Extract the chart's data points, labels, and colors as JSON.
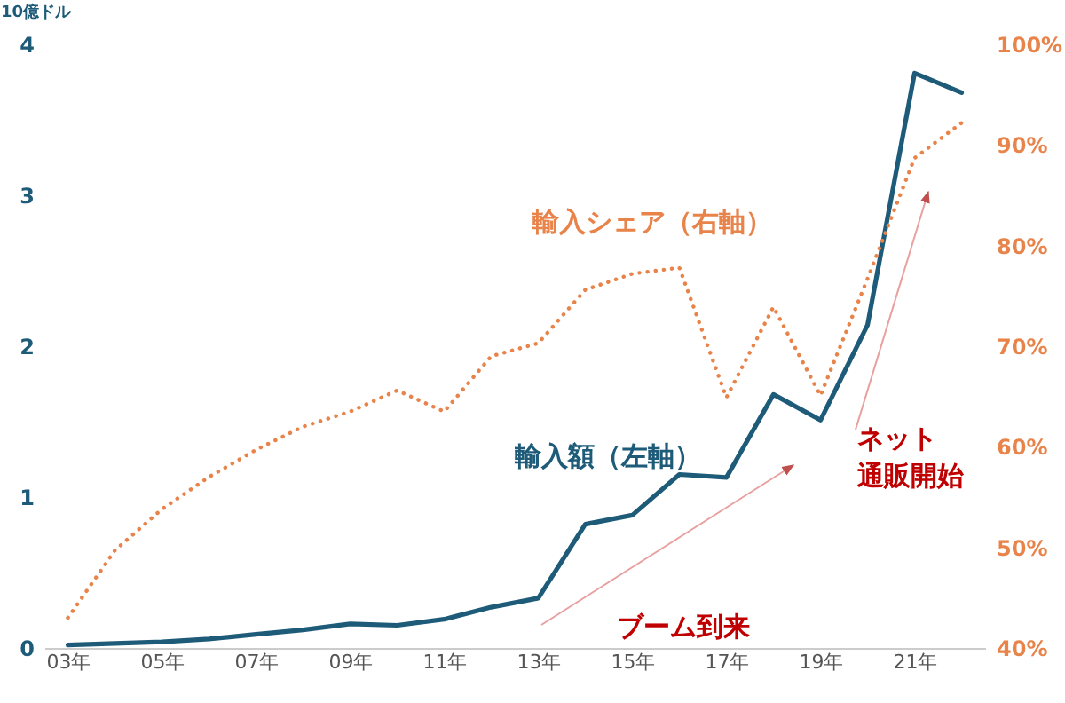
{
  "chart_data": {
    "type": "line",
    "ylabel": "10億ドル",
    "categories": [
      "03年",
      null,
      "05年",
      null,
      "07年",
      null,
      "09年",
      null,
      "11年",
      null,
      "13年",
      null,
      "15年",
      null,
      "17年",
      null,
      "19年",
      null,
      "21年",
      null
    ],
    "series": [
      {
        "name": "輸入額（左軸）",
        "color": "#1d5b79",
        "line_style": "solid",
        "values": [
          0.02,
          0.03,
          0.04,
          0.06,
          0.09,
          0.12,
          0.16,
          0.15,
          0.19,
          0.27,
          0.33,
          0.82,
          0.88,
          1.15,
          1.13,
          1.68,
          1.51,
          2.14,
          3.81,
          3.68
        ]
      },
      {
        "name": "輸入シェア（右軸）",
        "color": "#e8834a",
        "line_style": "dotted",
        "axis": "y2",
        "values": [
          43,
          49.7,
          53.8,
          57,
          59.7,
          62,
          63.5,
          65.6,
          63.5,
          69,
          70.3,
          75.6,
          77.2,
          77.8,
          64.9,
          73.9,
          65.1,
          76.7,
          88.7,
          92.2
        ]
      }
    ],
    "ylim": [
      0,
      4
    ],
    "yticks": [
      0,
      1,
      2,
      3,
      4
    ],
    "y2lim": [
      40,
      100
    ],
    "y2ticks": [
      {
        "value": 40,
        "label": "40%"
      },
      {
        "value": 50,
        "label": "50%"
      },
      {
        "value": 60,
        "label": "60%"
      },
      {
        "value": 70,
        "label": "70%"
      },
      {
        "value": 80,
        "label": "80%"
      },
      {
        "value": 90,
        "label": "90%"
      },
      {
        "value": 100,
        "label": "100%"
      }
    ],
    "annotations": [
      "ブーム到来",
      "ネット",
      "通販開始"
    ],
    "grid": false,
    "marker": "none"
  }
}
